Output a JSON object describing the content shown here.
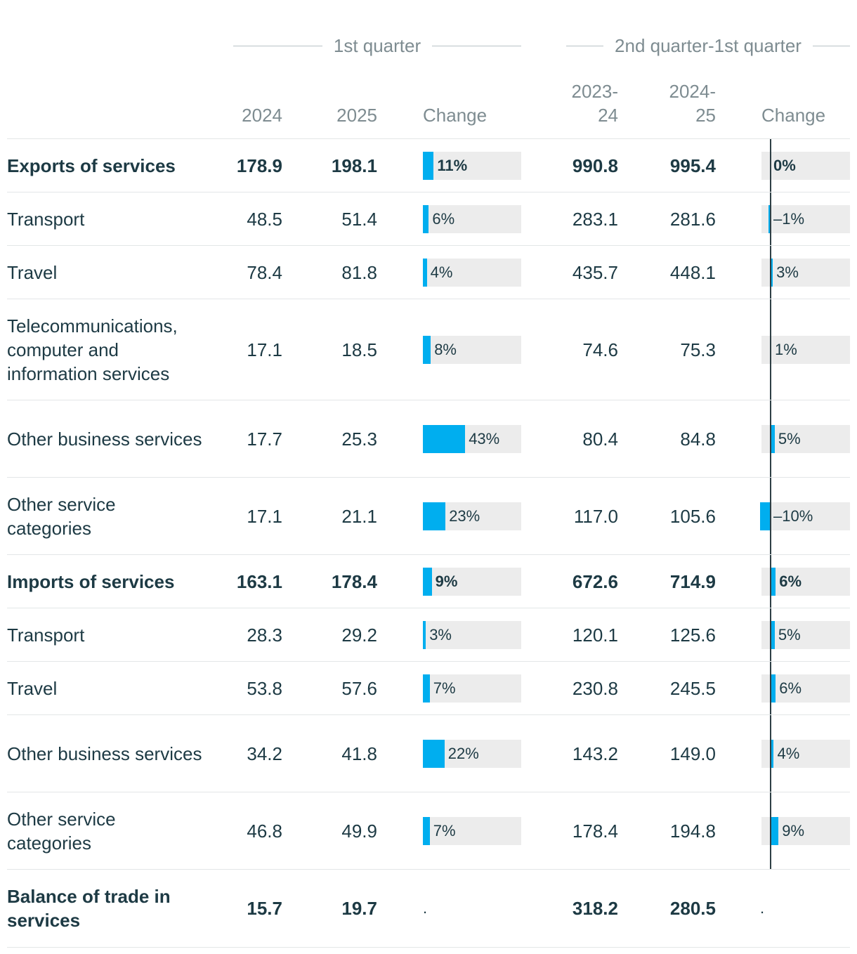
{
  "header": {
    "group1": "1st quarter",
    "group2": "2nd quarter-1st quarter",
    "col_2024": "2024",
    "col_2025": "2025",
    "col_change1": "Change",
    "col_2023_24": "2023-\n24",
    "col_2024_25": "2024-\n25",
    "col_change2": "Change"
  },
  "chart_data": {
    "type": "table",
    "columns": [
      "",
      "2024",
      "2025",
      "Change",
      "2023-24",
      "2024-25",
      "Change"
    ],
    "change_scale": {
      "q1_max_percent": 100,
      "h_min_percent": -10,
      "h_max_percent": 100
    },
    "rows": [
      {
        "label": "Exports of services",
        "bold": true,
        "v2024": "178.9",
        "v2025": "198.1",
        "c1": 11,
        "c1_text": "11%",
        "v2324": "990.8",
        "v2425": "995.4",
        "c2": 0,
        "c2_text": "0%"
      },
      {
        "label": "Transport",
        "bold": false,
        "v2024": "48.5",
        "v2025": "51.4",
        "c1": 6,
        "c1_text": "6%",
        "v2324": "283.1",
        "v2425": "281.6",
        "c2": -1,
        "c2_text": "–1%"
      },
      {
        "label": "Travel",
        "bold": false,
        "v2024": "78.4",
        "v2025": "81.8",
        "c1": 4,
        "c1_text": "4%",
        "v2324": "435.7",
        "v2425": "448.1",
        "c2": 3,
        "c2_text": "3%"
      },
      {
        "label": "Telecommunications, computer and information services",
        "bold": false,
        "v2024": "17.1",
        "v2025": "18.5",
        "c1": 8,
        "c1_text": "8%",
        "v2324": "74.6",
        "v2425": "75.3",
        "c2": 1,
        "c2_text": "1%"
      },
      {
        "label": "Other business services",
        "bold": false,
        "v2024": "17.7",
        "v2025": "25.3",
        "c1": 43,
        "c1_text": "43%",
        "v2324": "80.4",
        "v2425": "84.8",
        "c2": 5,
        "c2_text": "5%"
      },
      {
        "label": "Other service categories",
        "bold": false,
        "v2024": "17.1",
        "v2025": "21.1",
        "c1": 23,
        "c1_text": "23%",
        "v2324": "117.0",
        "v2425": "105.6",
        "c2": -10,
        "c2_text": "–10%"
      },
      {
        "label": "Imports of services",
        "bold": true,
        "v2024": "163.1",
        "v2025": "178.4",
        "c1": 9,
        "c1_text": "9%",
        "v2324": "672.6",
        "v2425": "714.9",
        "c2": 6,
        "c2_text": "6%"
      },
      {
        "label": "Transport",
        "bold": false,
        "v2024": "28.3",
        "v2025": "29.2",
        "c1": 3,
        "c1_text": "3%",
        "v2324": "120.1",
        "v2425": "125.6",
        "c2": 5,
        "c2_text": "5%"
      },
      {
        "label": "Travel",
        "bold": false,
        "v2024": "53.8",
        "v2025": "57.6",
        "c1": 7,
        "c1_text": "7%",
        "v2324": "230.8",
        "v2425": "245.5",
        "c2": 6,
        "c2_text": "6%"
      },
      {
        "label": "Other business services",
        "bold": false,
        "v2024": "34.2",
        "v2025": "41.8",
        "c1": 22,
        "c1_text": "22%",
        "v2324": "143.2",
        "v2425": "149.0",
        "c2": 4,
        "c2_text": "4%"
      },
      {
        "label": "Other service categories",
        "bold": false,
        "v2024": "46.8",
        "v2025": "49.9",
        "c1": 7,
        "c1_text": "7%",
        "v2324": "178.4",
        "v2425": "194.8",
        "c2": 9,
        "c2_text": "9%"
      },
      {
        "label": "Balance of trade in services",
        "bold": true,
        "v2024": "15.7",
        "v2025": "19.7",
        "c1": null,
        "c1_text": ".",
        "v2324": "318.2",
        "v2425": "280.5",
        "c2": null,
        "c2_text": "."
      }
    ]
  }
}
